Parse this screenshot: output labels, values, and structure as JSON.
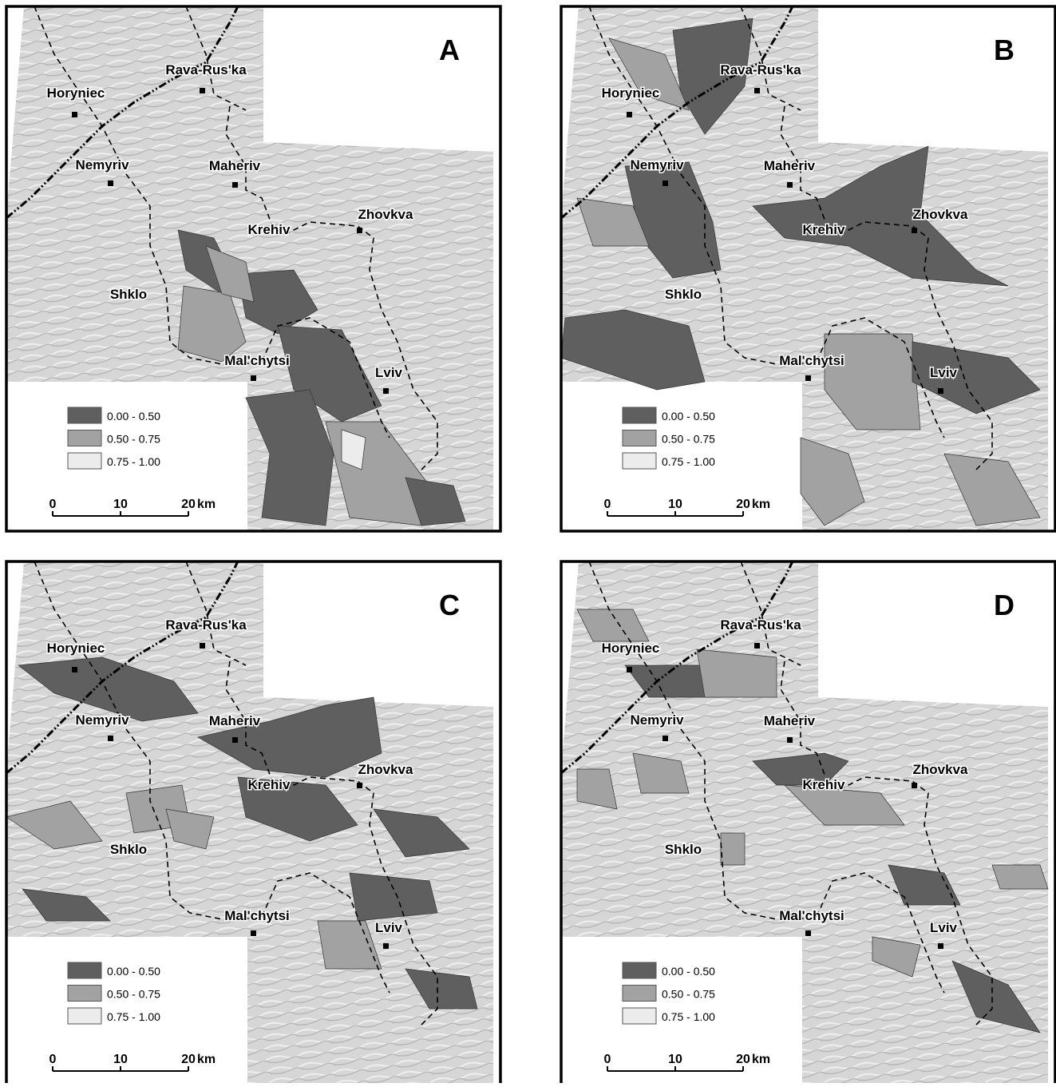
{
  "panels": [
    {
      "label": "A"
    },
    {
      "label": "B"
    },
    {
      "label": "C"
    },
    {
      "label": "D"
    }
  ],
  "places": [
    "Rava-Rus'ka",
    "Horyniec",
    "Nemyriv",
    "Maheriv",
    "Zhovkva",
    "Krehiv",
    "Shklo",
    "Mal'chytsi",
    "Lviv"
  ],
  "legend": [
    "0.00 - 0.50",
    "0.50 - 0.75",
    "0.75 - 1.00"
  ],
  "scale": {
    "ticks": [
      0,
      10,
      20
    ],
    "unit": "km"
  }
}
